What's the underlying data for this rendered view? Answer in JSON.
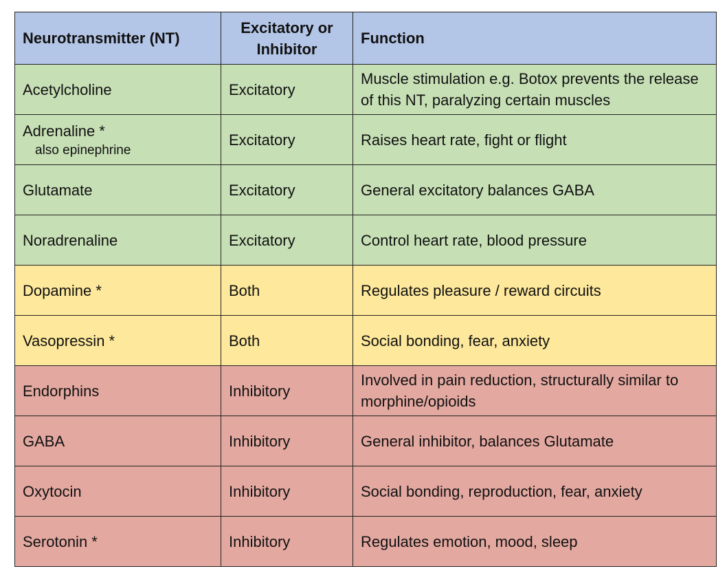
{
  "header": {
    "col1": "Neurotransmitter (NT)",
    "col2_line1": "Excitatory or",
    "col2_line2": "Inhibitor",
    "col3": "Function"
  },
  "rows": [
    {
      "name": "Acetylcholine",
      "sub": "",
      "type": "Excitatory",
      "category": "excitatory",
      "function": "Muscle stimulation e.g. Botox prevents the release of this NT, paralyzing certain muscles"
    },
    {
      "name": "Adrenaline *",
      "sub": "also epinephrine",
      "type": "Excitatory",
      "category": "excitatory",
      "function": "Raises heart rate, fight or flight"
    },
    {
      "name": "Glutamate",
      "sub": "",
      "type": "Excitatory",
      "category": "excitatory",
      "function": "General excitatory balances GABA"
    },
    {
      "name": "Noradrenaline",
      "sub": "",
      "type": "Excitatory",
      "category": "excitatory",
      "function": "Control heart rate, blood pressure"
    },
    {
      "name": "Dopamine *",
      "sub": "",
      "type": "Both",
      "category": "both",
      "function": "Regulates pleasure / reward circuits"
    },
    {
      "name": "Vasopressin *",
      "sub": "",
      "type": "Both",
      "category": "both",
      "function": "Social bonding, fear, anxiety"
    },
    {
      "name": "Endorphins",
      "sub": "",
      "type": "Inhibitory",
      "category": "inhibitory",
      "function": "Involved in pain reduction, structurally similar to morphine/opioids"
    },
    {
      "name": "GABA",
      "sub": "",
      "type": "Inhibitory",
      "category": "inhibitory",
      "function": "General inhibitor, balances Glutamate"
    },
    {
      "name": "Oxytocin",
      "sub": "",
      "type": "Inhibitory",
      "category": "inhibitory",
      "function": "Social bonding, reproduction, fear, anxiety"
    },
    {
      "name": "Serotonin *",
      "sub": "",
      "type": "Inhibitory",
      "category": "inhibitory",
      "function": "Regulates emotion, mood, sleep"
    }
  ],
  "colors": {
    "header": "#b4c6e7",
    "excitatory": "#c6dfb5",
    "both": "#fde89b",
    "inhibitory": "#e3a8a0"
  }
}
